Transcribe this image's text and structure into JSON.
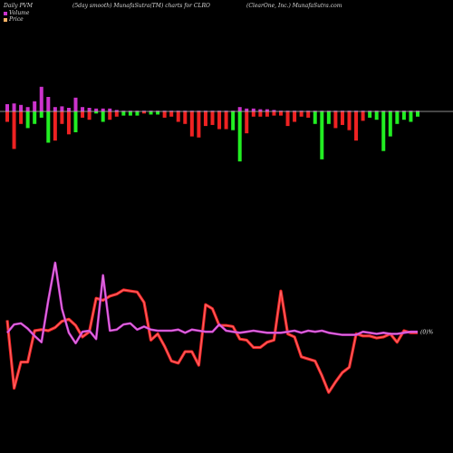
{
  "header": {
    "left": "Daily PVM",
    "center": "(5day smooth) MunafaSutra(TM) charts for CLRO",
    "right": "(ClearOne, Inc.) MunafaSutra.com"
  },
  "legend": {
    "volume_label": "Volume",
    "price_label": "Price"
  },
  "colors": {
    "background": "#000000",
    "up": "#22ee22",
    "down": "#ee2222",
    "volume_line": "#cc33cc",
    "baseline": "#bbbbbb",
    "price_swatch": "#ffb366"
  },
  "chart_data": {
    "type": "bar",
    "volume_bars": {
      "direction": [
        "down",
        "down",
        "down",
        "up",
        "up",
        "up",
        "up",
        "down",
        "down",
        "down",
        "up",
        "down",
        "down",
        "up",
        "up",
        "down",
        "down",
        "up",
        "up",
        "up",
        "down",
        "up",
        "up",
        "down",
        "down",
        "up",
        "down",
        "down",
        "down",
        "down",
        "down",
        "down",
        "down",
        "down",
        "up",
        "down",
        "down",
        "down",
        "down",
        "down",
        "down",
        "down",
        "down",
        "down",
        "down",
        "down",
        "down",
        "down",
        "up",
        "down",
        "down",
        "down",
        "down",
        "down",
        "up",
        "down",
        "up",
        "down",
        "down",
        "down",
        "down",
        "up",
        "down",
        "down",
        "down",
        "down",
        "down",
        "up",
        "down",
        "down",
        "up",
        "up",
        "down",
        "up"
      ],
      "values": [
        2,
        5,
        2,
        3,
        3,
        1,
        5,
        4,
        2,
        3,
        3,
        1,
        1,
        0,
        2,
        2,
        1,
        1,
        1,
        1,
        0,
        0,
        0,
        1,
        0,
        2,
        2,
        4,
        4,
        3,
        2,
        3,
        3,
        3,
        5,
        7,
        4,
        1,
        2,
        1,
        1,
        2,
        2,
        3,
        2,
        3,
        2,
        1,
        2,
        5,
        2,
        2,
        3,
        3,
        2,
        2,
        3,
        1,
        0,
        3,
        4,
        2,
        1,
        1,
        1,
        2,
        2,
        1,
        4,
        2,
        2,
        1,
        4,
        2
      ]
    },
    "volume_line": [
      3,
      2,
      3,
      3,
      4,
      4,
      5,
      9,
      7,
      5,
      4,
      3,
      6,
      5,
      4,
      3,
      3,
      3,
      3,
      2,
      3,
      2,
      2,
      3,
      2,
      2,
      3,
      3,
      3,
      2,
      2,
      3,
      2,
      3,
      3,
      2,
      2,
      2,
      3,
      3,
      2,
      2,
      3,
      2,
      2,
      3,
      2,
      2,
      2,
      2,
      2,
      3,
      2,
      2,
      3,
      2,
      2,
      2,
      2,
      2,
      2,
      2,
      2,
      2,
      2,
      3,
      2,
      2,
      2,
      2,
      2,
      2,
      2,
      2
    ],
    "price": [
      8,
      1,
      4,
      4,
      7,
      7,
      6,
      7,
      8,
      9,
      9,
      7,
      6,
      8,
      7,
      6,
      6,
      6,
      6,
      6,
      6,
      6,
      6,
      6,
      6,
      4,
      5,
      4,
      3,
      3,
      4,
      4,
      4,
      4,
      4,
      4,
      4,
      4,
      4,
      4,
      4,
      4,
      4,
      4,
      4,
      4,
      4,
      4,
      4,
      4,
      4,
      4,
      4,
      4,
      4,
      4,
      4,
      4,
      4,
      4,
      4,
      4,
      4,
      4,
      4,
      4,
      4,
      4,
      4,
      4,
      4,
      4,
      4,
      4
    ],
    "price_series": [
      [
        0,
        7.5
      ],
      [
        1,
        1.0
      ],
      [
        2,
        3.5
      ],
      [
        3,
        3.5
      ],
      [
        4,
        6.5
      ],
      [
        5,
        6.6
      ],
      [
        6,
        6.5
      ],
      [
        7,
        6.8
      ],
      [
        8,
        7.4
      ],
      [
        9,
        7.6
      ],
      [
        10,
        7.0
      ],
      [
        11,
        5.9
      ],
      [
        12,
        6.4
      ],
      [
        13,
        9.6
      ],
      [
        14,
        9.4
      ],
      [
        15,
        9.8
      ],
      [
        16,
        10.0
      ],
      [
        17,
        10.4
      ],
      [
        18,
        10.3
      ],
      [
        19,
        10.2
      ],
      [
        20,
        9.2
      ],
      [
        21,
        5.6
      ],
      [
        22,
        6.2
      ],
      [
        23,
        5.0
      ],
      [
        24,
        3.6
      ],
      [
        25,
        3.4
      ],
      [
        26,
        4.5
      ],
      [
        27,
        4.5
      ],
      [
        28,
        3.2
      ],
      [
        29,
        9.0
      ],
      [
        30,
        8.6
      ],
      [
        31,
        7.0
      ],
      [
        32,
        7.0
      ],
      [
        33,
        6.9
      ],
      [
        34,
        5.7
      ],
      [
        35,
        5.6
      ],
      [
        36,
        4.9
      ],
      [
        37,
        4.9
      ],
      [
        38,
        5.4
      ],
      [
        39,
        5.6
      ],
      [
        40,
        10.3
      ],
      [
        41,
        6.2
      ],
      [
        42,
        5.9
      ],
      [
        43,
        4.0
      ],
      [
        44,
        3.8
      ],
      [
        45,
        3.6
      ],
      [
        46,
        2.2
      ],
      [
        47,
        0.6
      ],
      [
        48,
        1.6
      ],
      [
        49,
        2.5
      ],
      [
        50,
        3.0
      ],
      [
        51,
        6.2
      ],
      [
        52,
        6.0
      ],
      [
        53,
        6.0
      ],
      [
        54,
        5.8
      ],
      [
        55,
        5.9
      ],
      [
        56,
        6.2
      ],
      [
        57,
        5.4
      ],
      [
        58,
        6.5
      ],
      [
        59,
        6.3
      ],
      [
        60,
        6.3
      ]
    ],
    "volume_line_series": [
      [
        0,
        6.3
      ],
      [
        1,
        7.1
      ],
      [
        2,
        7.2
      ],
      [
        3,
        6.7
      ],
      [
        4,
        6.0
      ],
      [
        5,
        5.4
      ],
      [
        6,
        9.4
      ],
      [
        7,
        13.0
      ],
      [
        8,
        8.6
      ],
      [
        9,
        6.3
      ],
      [
        10,
        5.3
      ],
      [
        11,
        6.4
      ],
      [
        12,
        6.5
      ],
      [
        13,
        5.7
      ],
      [
        14,
        11.8
      ],
      [
        15,
        6.5
      ],
      [
        16,
        6.6
      ],
      [
        17,
        7.1
      ],
      [
        18,
        7.2
      ],
      [
        19,
        6.6
      ],
      [
        20,
        6.9
      ],
      [
        21,
        6.6
      ],
      [
        22,
        6.5
      ],
      [
        23,
        6.5
      ],
      [
        24,
        6.5
      ],
      [
        25,
        6.6
      ],
      [
        26,
        6.3
      ],
      [
        27,
        6.6
      ],
      [
        28,
        6.5
      ],
      [
        29,
        6.4
      ],
      [
        30,
        6.4
      ],
      [
        31,
        7.1
      ],
      [
        32,
        6.5
      ],
      [
        33,
        6.4
      ],
      [
        34,
        6.3
      ],
      [
        35,
        6.4
      ],
      [
        36,
        6.5
      ],
      [
        37,
        6.4
      ],
      [
        38,
        6.3
      ],
      [
        39,
        6.3
      ],
      [
        40,
        6.3
      ],
      [
        41,
        6.4
      ],
      [
        42,
        6.5
      ],
      [
        43,
        6.3
      ],
      [
        44,
        6.5
      ],
      [
        45,
        6.4
      ],
      [
        46,
        6.5
      ],
      [
        47,
        6.3
      ],
      [
        48,
        6.2
      ],
      [
        49,
        6.1
      ],
      [
        50,
        6.1
      ],
      [
        51,
        6.1
      ],
      [
        52,
        6.4
      ],
      [
        53,
        6.3
      ],
      [
        54,
        6.2
      ],
      [
        55,
        6.3
      ],
      [
        56,
        6.2
      ],
      [
        57,
        6.2
      ],
      [
        58,
        6.3
      ],
      [
        59,
        6.4
      ],
      [
        60,
        6.4
      ]
    ],
    "volume_bar_series": [
      [
        "down",
        1.0
      ],
      [
        "down",
        3.6
      ],
      [
        "down",
        1.2
      ],
      [
        "up",
        1.6
      ],
      [
        "up",
        1.2
      ],
      [
        "up",
        0.6
      ],
      [
        "up",
        3.0
      ],
      [
        "down",
        2.8
      ],
      [
        "down",
        1.2
      ],
      [
        "down",
        2.2
      ],
      [
        "up",
        2.0
      ],
      [
        "down",
        0.6
      ],
      [
        "down",
        0.8
      ],
      [
        "up",
        0.2
      ],
      [
        "up",
        1.0
      ],
      [
        "down",
        0.8
      ],
      [
        "down",
        0.5
      ],
      [
        "up",
        0.4
      ],
      [
        "up",
        0.4
      ],
      [
        "up",
        0.4
      ],
      [
        "down",
        0.2
      ],
      [
        "up",
        0.3
      ],
      [
        "up",
        0.3
      ],
      [
        "down",
        0.6
      ],
      [
        "down",
        0.5
      ],
      [
        "down",
        1.0
      ],
      [
        "down",
        1.2
      ],
      [
        "down",
        2.4
      ],
      [
        "down",
        2.5
      ],
      [
        "down",
        1.4
      ],
      [
        "down",
        1.3
      ],
      [
        "down",
        1.7
      ],
      [
        "down",
        1.7
      ],
      [
        "up",
        1.8
      ],
      [
        "up",
        4.8
      ],
      [
        "down",
        2.1
      ],
      [
        "down",
        0.5
      ],
      [
        "down",
        0.5
      ],
      [
        "down",
        0.5
      ],
      [
        "down",
        0.4
      ],
      [
        "down",
        0.4
      ],
      [
        "down",
        1.4
      ],
      [
        "down",
        1.0
      ],
      [
        "down",
        0.5
      ],
      [
        "down",
        0.6
      ],
      [
        "up",
        1.2
      ],
      [
        "up",
        4.6
      ],
      [
        "up",
        1.2
      ],
      [
        "down",
        1.6
      ],
      [
        "down",
        1.3
      ],
      [
        "down",
        1.8
      ],
      [
        "down",
        2.8
      ],
      [
        "down",
        0.9
      ],
      [
        "up",
        0.6
      ],
      [
        "up",
        0.8
      ],
      [
        "up",
        3.8
      ],
      [
        "up",
        2.4
      ],
      [
        "up",
        1.2
      ],
      [
        "up",
        0.8
      ],
      [
        "up",
        1.0
      ],
      [
        "up",
        0.5
      ]
    ],
    "upper_volume_bars": [
      1.0,
      1.1,
      0.9,
      0.6,
      1.4,
      3.4,
      2.0,
      0.6,
      0.7,
      0.5,
      1.9,
      0.6,
      0.5,
      0.4,
      0.4,
      0.4,
      0.2,
      0.1,
      0.1,
      0.1,
      0.1,
      0.1,
      0.1,
      0.1,
      0.1,
      0.1,
      0.1,
      0.1,
      0.1,
      0.1,
      0.1,
      0.1,
      0.1,
      0.1,
      0.6,
      0.4,
      0.4,
      0.3,
      0.3,
      0.2,
      0.1,
      0.1,
      0.1,
      0.1,
      0.1,
      0.1,
      0.1,
      0.1,
      0.1,
      0.1,
      0.1,
      0.1,
      0.1,
      0.1,
      0.1,
      0.1,
      0.1,
      0.1,
      0.1,
      0.1,
      0.1
    ],
    "price_end_label": "(0)%",
    "ylim_price": [
      0,
      13
    ],
    "grid": false
  }
}
